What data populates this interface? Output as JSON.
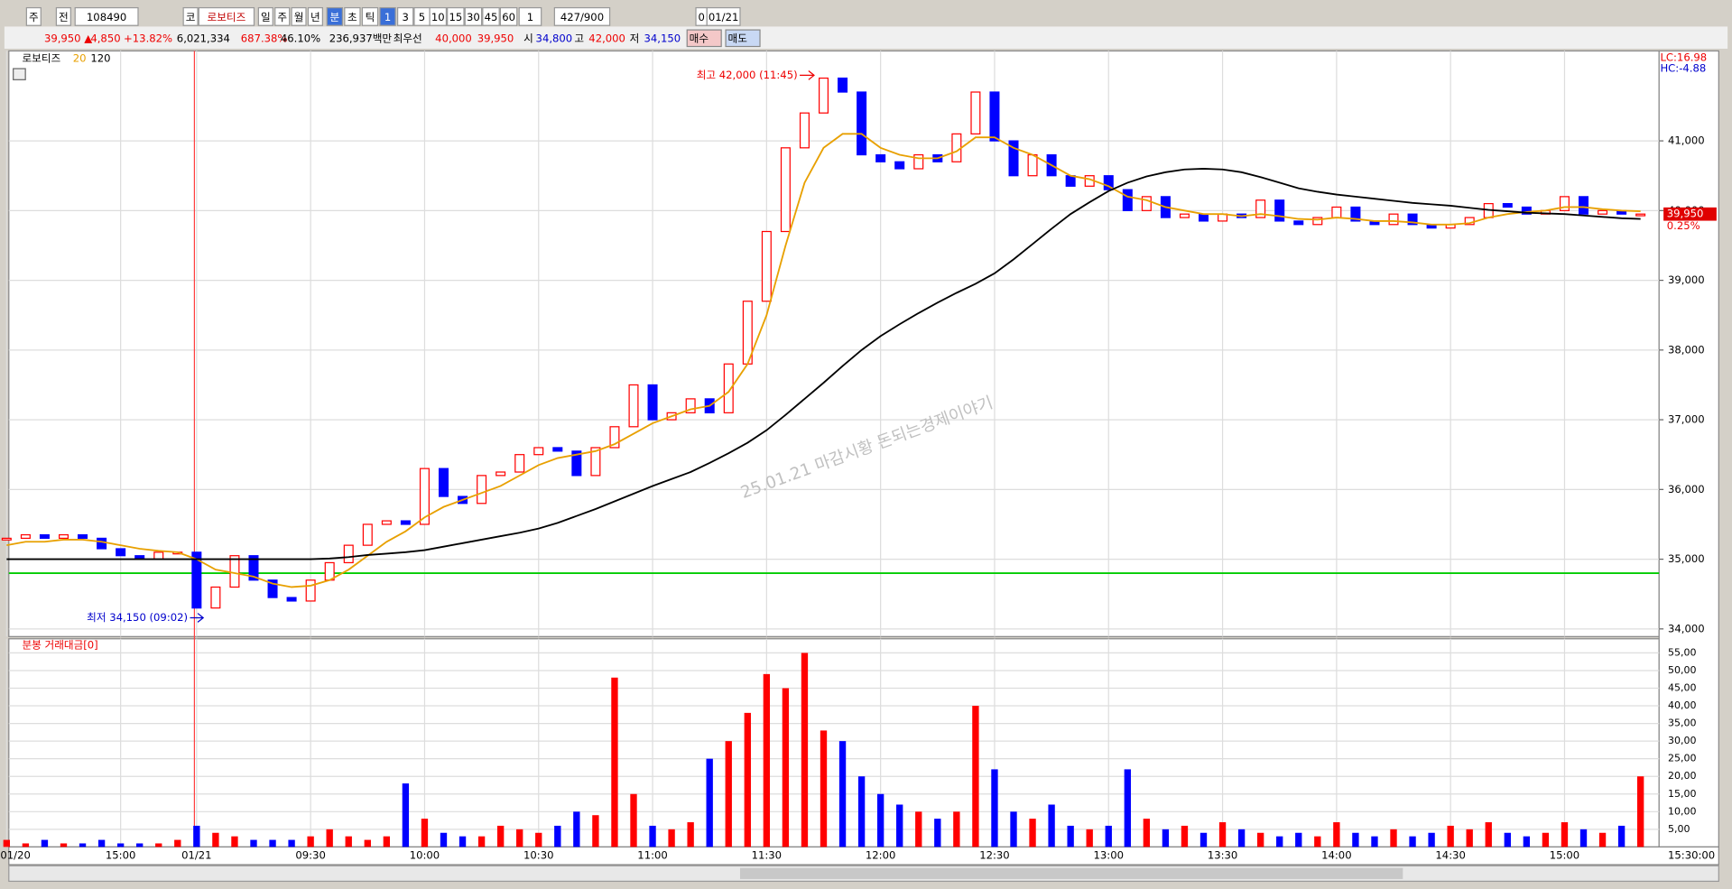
{
  "toolbar": [
    "주",
    "전",
    "108490",
    "코",
    "로보티즈",
    "일",
    "주",
    "월",
    "년",
    "분",
    "초",
    "틱",
    "1",
    "3",
    "5",
    "10",
    "15",
    "30",
    "45",
    "60",
    "1",
    "427/900",
    "0",
    "01/21"
  ],
  "quote": [
    "39,950 ▲",
    "4,850",
    "+13.82%",
    "6,021,334",
    "687.38%",
    "46.10%",
    "236,937백만",
    "최우선",
    "40,000",
    "39,950",
    "시",
    "34,800",
    "고",
    "42,000",
    "저",
    "34,150",
    "매수",
    "매도"
  ],
  "chart_data": [
    {
      "type": "candlestick",
      "title": "로보티즈",
      "close": [
        35300,
        35350,
        35300,
        35350,
        35300,
        35150,
        35050,
        35000,
        35100,
        35100,
        34300,
        34600,
        35050,
        34700,
        34450,
        34400,
        34700,
        34950,
        35200,
        35500,
        35550,
        35500,
        36300,
        35900,
        35800,
        36200,
        36250,
        36500,
        36600,
        36550,
        36200,
        36600,
        36900,
        37500,
        37000,
        37100,
        37300,
        37100,
        37800,
        38700,
        39700,
        40900,
        41400,
        41900,
        41700,
        40800,
        40700,
        40600,
        40800,
        40700,
        41100,
        41700,
        41000,
        40500,
        40800,
        40500,
        40350,
        40500,
        40300,
        40000,
        40200,
        39900,
        39950,
        39850,
        39950,
        39900,
        40150,
        39850,
        39800,
        39900,
        40050,
        39850,
        39800,
        39950,
        39800,
        39750,
        39800,
        39900,
        40100,
        40050,
        39950,
        40000,
        40200,
        39950,
        40000,
        39950,
        39950
      ],
      "ma": [
        {
          "name": "20",
          "color": "#e8a000",
          "values": [
            35200,
            35250,
            35250,
            35280,
            35280,
            35250,
            35200,
            35150,
            35120,
            35100,
            35000,
            34850,
            34800,
            34750,
            34650,
            34600,
            34620,
            34700,
            34850,
            35050,
            35250,
            35400,
            35600,
            35750,
            35850,
            35950,
            36050,
            36200,
            36350,
            36450,
            36500,
            36550,
            36650,
            36800,
            36950,
            37050,
            37150,
            37200,
            37400,
            37800,
            38500,
            39500,
            40400,
            40900,
            41100,
            41100,
            40900,
            40800,
            40750,
            40750,
            40850,
            41050,
            41050,
            40900,
            40800,
            40650,
            40500,
            40450,
            40350,
            40200,
            40150,
            40050,
            40000,
            39950,
            39950,
            39920,
            39950,
            39920,
            39880,
            39870,
            39900,
            39880,
            39850,
            39850,
            39830,
            39800,
            39800,
            39820,
            39900,
            39950,
            39980,
            40000,
            40050,
            40050,
            40020,
            40000,
            39990
          ]
        },
        {
          "name": "120",
          "color": "#000000",
          "values": [
            35000,
            35000,
            35000,
            35000,
            35000,
            35000,
            35000,
            35000,
            35000,
            35000,
            35000,
            35000,
            35000,
            35000,
            35000,
            35000,
            35000,
            35010,
            35030,
            35060,
            35080,
            35100,
            35130,
            35180,
            35230,
            35280,
            35330,
            35380,
            35440,
            35520,
            35620,
            35720,
            35830,
            35940,
            36050,
            36150,
            36250,
            36380,
            36520,
            36670,
            36850,
            37070,
            37300,
            37530,
            37770,
            38000,
            38200,
            38370,
            38530,
            38680,
            38820,
            38950,
            39100,
            39300,
            39520,
            39740,
            39950,
            40120,
            40280,
            40400,
            40490,
            40550,
            40590,
            40600,
            40590,
            40550,
            40480,
            40400,
            40320,
            40270,
            40230,
            40200,
            40170,
            40140,
            40110,
            40090,
            40070,
            40040,
            40010,
            39990,
            39970,
            39960,
            39950,
            39930,
            39910,
            39890,
            39880
          ]
        }
      ],
      "up_color": "#ff0000",
      "down_color": "#0000ff",
      "ylim": [
        33890,
        42290
      ],
      "yticks": [
        {
          "value": 34000,
          "label": "34,000"
        },
        {
          "value": 35000,
          "label": "35,000"
        },
        {
          "value": 36000,
          "label": "36,000"
        },
        {
          "value": 37000,
          "label": "37,000"
        },
        {
          "value": 38000,
          "label": "38,000"
        },
        {
          "value": 39000,
          "label": "39,000"
        },
        {
          "value": 40000,
          "label": "40,000"
        },
        {
          "value": 41000,
          "label": "41,000"
        }
      ],
      "reference_line": {
        "value": 34800,
        "color": "#00cc00"
      },
      "annotations": [
        "최고 42,000 (11:45)",
        "최저 34,150 (09:02)"
      ],
      "last_price": {
        "value": 39950,
        "label": "39,950",
        "change": "0.25%"
      },
      "lc": "LC:16.98",
      "hc": "HC:-4.88",
      "watermark": "25.01.21 마감시황 돈되는경제이야기",
      "grid": true
    },
    {
      "type": "bar",
      "title": "분봉 거래대금[0]",
      "categories": [
        "01/20",
        null,
        null,
        null,
        null,
        null,
        "15:00",
        null,
        null,
        null,
        "01/21",
        null,
        null,
        null,
        null,
        null,
        "09:30",
        null,
        null,
        null,
        null,
        null,
        "10:00",
        null,
        null,
        null,
        null,
        null,
        "10:30",
        null,
        null,
        null,
        null,
        null,
        "11:00",
        null,
        null,
        null,
        null,
        null,
        "11:30",
        null,
        null,
        null,
        null,
        null,
        "12:00",
        null,
        null,
        null,
        null,
        null,
        "12:30",
        null,
        null,
        null,
        null,
        null,
        "13:00",
        null,
        null,
        null,
        null,
        null,
        "13:30",
        null,
        null,
        null,
        null,
        null,
        "14:00",
        null,
        null,
        null,
        null,
        null,
        "14:30",
        null,
        null,
        null,
        null,
        null,
        "15:00",
        null,
        null,
        null,
        null
      ],
      "values": [
        2,
        1,
        2,
        1,
        1,
        2,
        1,
        1,
        1,
        2,
        6,
        4,
        3,
        2,
        2,
        2,
        3,
        5,
        3,
        2,
        3,
        18,
        8,
        4,
        3,
        3,
        6,
        5,
        4,
        6,
        10,
        9,
        48,
        15,
        6,
        5,
        7,
        25,
        30,
        38,
        49,
        45,
        55,
        33,
        30,
        20,
        15,
        12,
        10,
        8,
        10,
        40,
        22,
        10,
        8,
        12,
        6,
        5,
        6,
        22,
        8,
        5,
        6,
        4,
        7,
        5,
        4,
        3,
        4,
        3,
        7,
        4,
        3,
        5,
        3,
        4,
        6,
        5,
        7,
        4,
        3,
        4,
        7,
        5,
        4,
        6,
        20
      ],
      "ylim": [
        0,
        59
      ],
      "yticks": [
        {
          "value": 5,
          "label": "5,00"
        },
        {
          "value": 10,
          "label": "10,00"
        },
        {
          "value": 15,
          "label": "15,00"
        },
        {
          "value": 20,
          "label": "20,00"
        },
        {
          "value": 25,
          "label": "25,00"
        },
        {
          "value": 30,
          "label": "30,00"
        },
        {
          "value": 35,
          "label": "35,00"
        },
        {
          "value": 40,
          "label": "40,00"
        },
        {
          "value": 45,
          "label": "45,00"
        },
        {
          "value": 50,
          "label": "50,00"
        },
        {
          "value": 55,
          "label": "55,00"
        }
      ],
      "x_end_label": "15:30:00"
    }
  ]
}
